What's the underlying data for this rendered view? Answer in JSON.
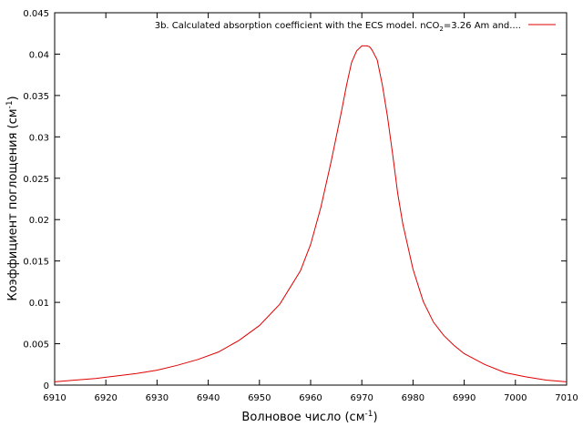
{
  "chart_data": {
    "type": "line",
    "xlabel": "Волновое число (см",
    "xlabel_sup": "-1",
    "xlabel_tail": ")",
    "ylabel": "Коэффициент поглощения (см",
    "ylabel_sup": "-1",
    "ylabel_tail": ")",
    "xlim": [
      6910,
      7010
    ],
    "ylim": [
      0,
      0.045
    ],
    "xticks": [
      "6910",
      "6920",
      "6930",
      "6940",
      "6950",
      "6960",
      "6970",
      "6980",
      "6990",
      "7000",
      "7010"
    ],
    "yticks": [
      "0",
      "0.005",
      "0.01",
      "0.015",
      "0.02",
      "0.025",
      "0.03",
      "0.035",
      "0.04",
      "0.045"
    ],
    "grid": false,
    "legend_position": "top-right",
    "series": [
      {
        "name_pre": "3b. Calculated absorption coefficient with the ECS model. nCO",
        "name_sub": "2",
        "name_post": "=3.26 Am and....",
        "color": "#e00000",
        "x": [
          6910,
          6914,
          6918,
          6922,
          6926,
          6930,
          6934,
          6938,
          6942,
          6946,
          6950,
          6954,
          6958,
          6960,
          6962,
          6964,
          6966,
          6967,
          6968,
          6969,
          6970,
          6971,
          6971.5,
          6972,
          6973,
          6974,
          6975,
          6976,
          6977,
          6978,
          6980,
          6982,
          6984,
          6986,
          6988,
          6990,
          6994,
          6998,
          7002,
          7006,
          7010
        ],
        "y": [
          0.0004,
          0.0006,
          0.0008,
          0.0011,
          0.0014,
          0.0018,
          0.0024,
          0.0031,
          0.004,
          0.0054,
          0.0072,
          0.0098,
          0.0138,
          0.017,
          0.0215,
          0.027,
          0.033,
          0.0362,
          0.039,
          0.0404,
          0.041,
          0.041,
          0.0409,
          0.0405,
          0.0393,
          0.0363,
          0.0325,
          0.028,
          0.0232,
          0.0195,
          0.014,
          0.0101,
          0.0076,
          0.006,
          0.0048,
          0.0038,
          0.0025,
          0.0015,
          0.001,
          0.0006,
          0.0004
        ]
      }
    ]
  }
}
